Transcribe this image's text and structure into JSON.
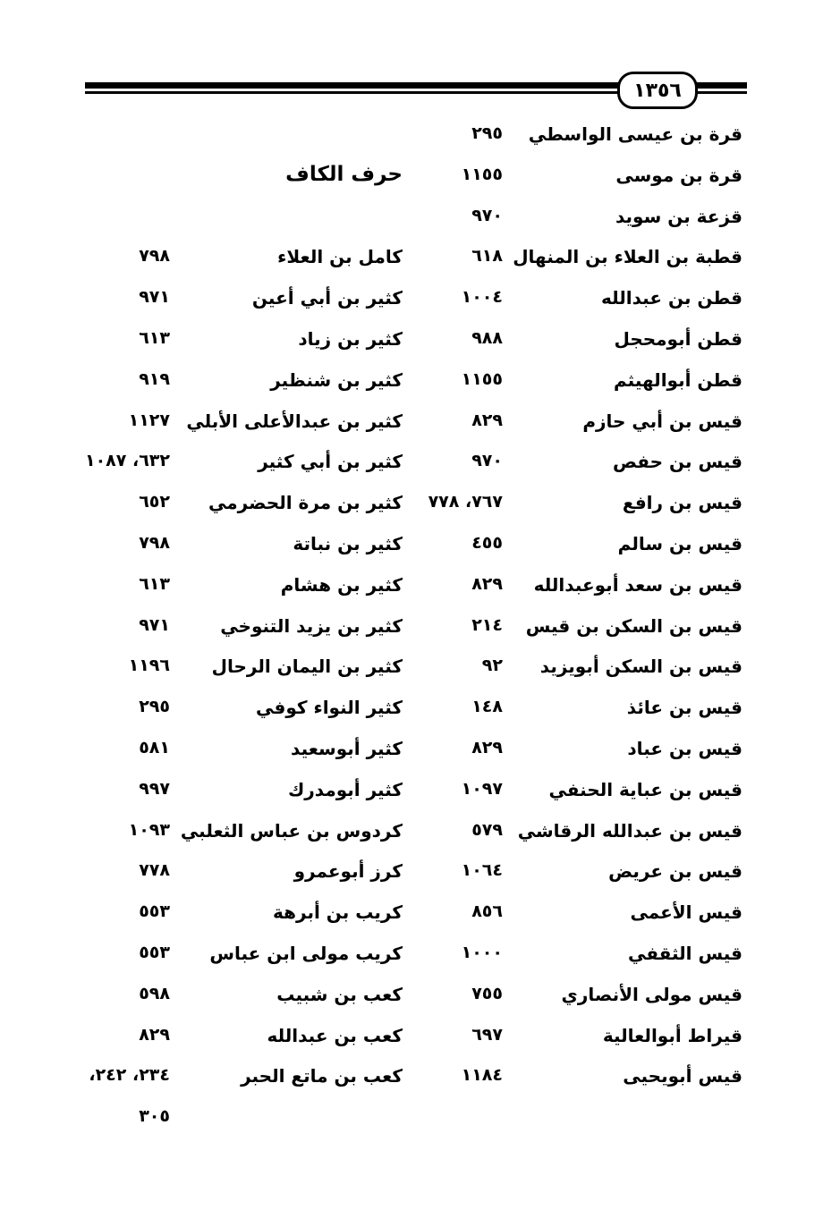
{
  "page_number": "١٣٥٦",
  "right_column": [
    {
      "name": "قرة بن عيسى الواسطي",
      "pages": "٢٩٥"
    },
    {
      "name": "قرة بن موسى",
      "pages": "١١٥٥"
    },
    {
      "name": "قزعة بن سويد",
      "pages": "٩٧٠"
    },
    {
      "name": "قطبة بن العلاء بن المنهال",
      "pages": "٦١٨"
    },
    {
      "name": "قطن بن عبدالله",
      "pages": "١٠٠٤"
    },
    {
      "name": "قطن أبومحجل",
      "pages": "٩٨٨"
    },
    {
      "name": "قطن أبوالهيثم",
      "pages": "١١٥٥"
    },
    {
      "name": "قيس بن أبي حازم",
      "pages": "٨٢٩"
    },
    {
      "name": "قيس بن حفص",
      "pages": "٩٧٠"
    },
    {
      "name": "قيس بن رافع",
      "pages": "٧٦٧، ٧٧٨"
    },
    {
      "name": "قيس بن سالم",
      "pages": "٤٥٥"
    },
    {
      "name": "قيس بن سعد أبوعبدالله",
      "pages": "٨٢٩"
    },
    {
      "name": "قيس بن السكن بن قيس",
      "pages": "٢١٤"
    },
    {
      "name": "قيس بن السكن أبويزيد",
      "pages": "٩٢"
    },
    {
      "name": "قيس بن عائذ",
      "pages": "١٤٨"
    },
    {
      "name": "قيس بن عباد",
      "pages": "٨٢٩"
    },
    {
      "name": "قيس بن عباية الحنفي",
      "pages": "١٠٩٧"
    },
    {
      "name": "قيس بن عبدالله الرقاشي",
      "pages": "٥٧٩"
    },
    {
      "name": "قيس بن عريض",
      "pages": "١٠٦٤"
    },
    {
      "name": "قيس الأعمى",
      "pages": "٨٥٦"
    },
    {
      "name": "قيس الثقفي",
      "pages": "١٠٠٠"
    },
    {
      "name": "قيس مولى الأنصاري",
      "pages": "٧٥٥"
    },
    {
      "name": "قيراط أبوالعالية",
      "pages": "٦٩٧"
    },
    {
      "name": "قيس أبويحيى",
      "pages": "١١٨٤"
    }
  ],
  "left_column": {
    "heading": "حرف الكاف",
    "entries": [
      {
        "name": "كامل بن العلاء",
        "pages": "٧٩٨"
      },
      {
        "name": "كثير بن أبي أعين",
        "pages": "٩٧١"
      },
      {
        "name": "كثير بن زياد",
        "pages": "٦١٣"
      },
      {
        "name": "كثير بن شنظير",
        "pages": "٩١٩"
      },
      {
        "name": "كثير بن عبدالأعلى الأبلي",
        "pages": "١١٢٧"
      },
      {
        "name": "كثير بن أبي كثير",
        "pages": "٦٣٢، ١٠٨٧"
      },
      {
        "name": "كثير بن مرة الحضرمي",
        "pages": "٦٥٢"
      },
      {
        "name": "كثير بن نباتة",
        "pages": "٧٩٨"
      },
      {
        "name": "كثير بن هشام",
        "pages": "٦١٣"
      },
      {
        "name": "كثير بن يزيد التنوخي",
        "pages": "٩٧١"
      },
      {
        "name": "كثير بن اليمان الرحال",
        "pages": "١١٩٦"
      },
      {
        "name": "كثير النواء كوفي",
        "pages": "٢٩٥"
      },
      {
        "name": "كثير أبوسعيد",
        "pages": "٥٨١"
      },
      {
        "name": "كثير أبومدرك",
        "pages": "٩٩٧"
      },
      {
        "name": "كردوس بن عباس الثعلبي",
        "pages": "١٠٩٣"
      },
      {
        "name": "كرز أبوعمرو",
        "pages": "٧٧٨"
      },
      {
        "name": "كريب بن أبرهة",
        "pages": "٥٥٣"
      },
      {
        "name": "كريب مولى ابن عباس",
        "pages": "٥٥٣"
      },
      {
        "name": "كعب بن شبيب",
        "pages": "٥٩٨"
      },
      {
        "name": "كعب بن عبدالله",
        "pages": "٨٢٩"
      },
      {
        "name": "كعب بن ماتع الحبر",
        "pages": "٢٣٤، ٢٤٢،"
      }
    ],
    "continuation": "٣٠٥"
  }
}
